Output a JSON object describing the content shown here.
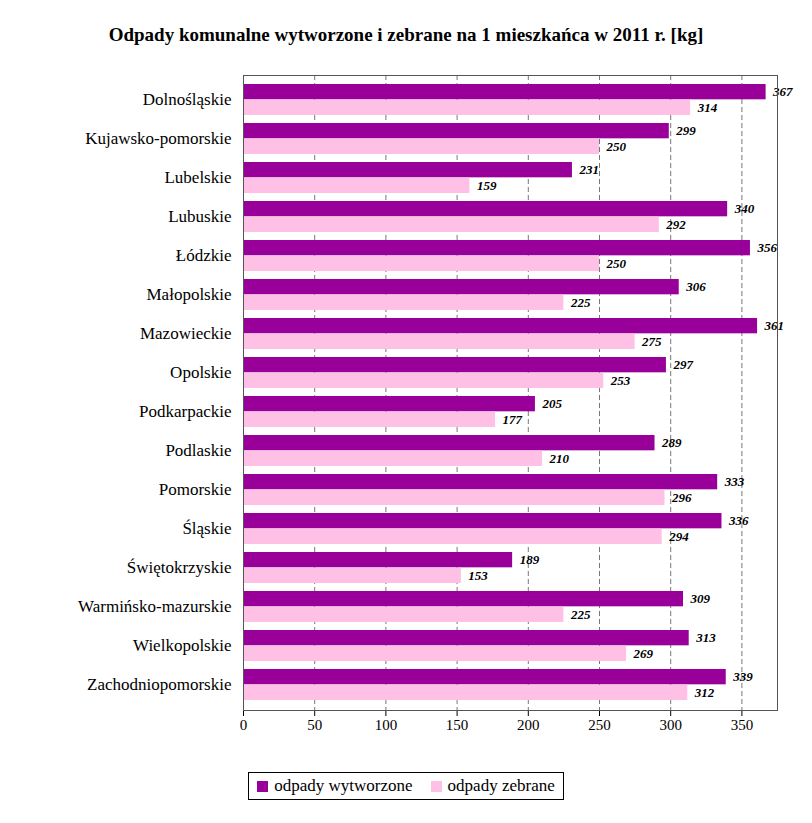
{
  "chart_data": {
    "type": "bar",
    "title": "Odpady komunalne wytworzone i zebrane na 1 mieszkańca w 2011 r. [kg]",
    "orientation": "horizontal",
    "categories": [
      "Dolnośląskie",
      "Kujawsko-pomorskie",
      "Lubelskie",
      "Lubuskie",
      "Łódzkie",
      "Małopolskie",
      "Mazowieckie",
      "Opolskie",
      "Podkarpackie",
      "Podlaskie",
      "Pomorskie",
      "Śląskie",
      "Świętokrzyskie",
      "Warmińsko-mazurskie",
      "Wielkopolskie",
      "Zachodniopomorskie"
    ],
    "series": [
      {
        "name": "odpady wytworzone",
        "color": "#990099",
        "values": [
          367,
          299,
          231,
          340,
          356,
          306,
          361,
          297,
          205,
          289,
          333,
          336,
          189,
          309,
          313,
          339
        ]
      },
      {
        "name": "odpady zebrane",
        "color": "#ffc0e6",
        "values": [
          314,
          250,
          159,
          292,
          250,
          225,
          275,
          253,
          177,
          210,
          296,
          294,
          153,
          225,
          269,
          312
        ]
      }
    ],
    "xlim": [
      0,
      375
    ],
    "xticks": [
      0,
      50,
      100,
      150,
      200,
      250,
      300,
      350
    ],
    "grid": true,
    "data_labels": true,
    "legend": "bottom"
  }
}
